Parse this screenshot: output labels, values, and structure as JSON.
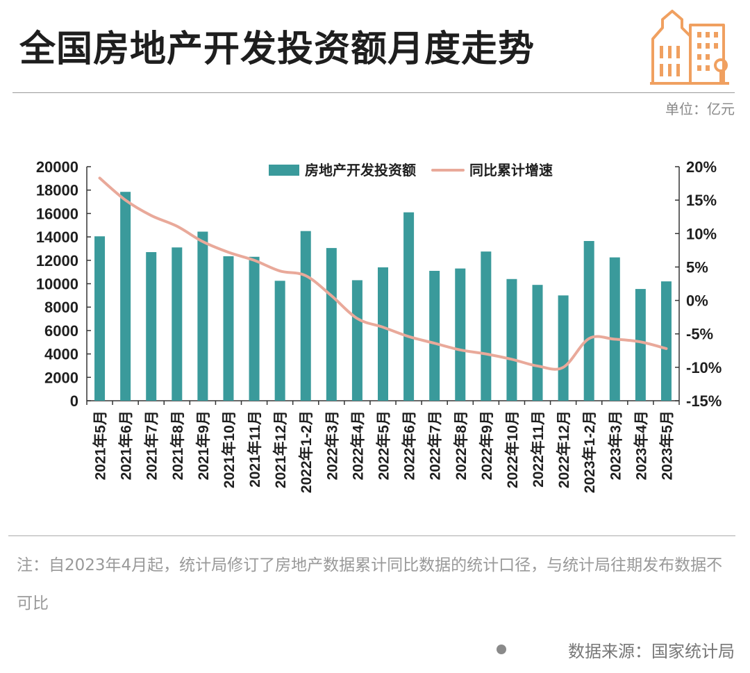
{
  "header": {
    "title": "全国房地产开发投资额月度走势"
  },
  "unit_label": "单位：亿元",
  "footer": {
    "note": "注：自2023年4月起，统计局修订了房地产数据累计同比数据的统计口径，与统计局往期发布数据不可比",
    "source": "数据来源：国家统计局"
  },
  "colors": {
    "bar": "#3a9a9b",
    "line": "#e9a99a",
    "logo": "#f0a060"
  },
  "logo_icon": "building-icon",
  "chart_data": {
    "type": "bar",
    "title": "全国房地产开发投资额月度走势",
    "categories": [
      "2021年5月",
      "2021年6月",
      "2021年7月",
      "2021年8月",
      "2021年9月",
      "2021年10月",
      "2021年11月",
      "2021年12月",
      "2022年1-2月",
      "2022年3月",
      "2022年4月",
      "2022年5月",
      "2022年6月",
      "2022年7月",
      "2022年8月",
      "2022年9月",
      "2022年10月",
      "2022年11月",
      "2022年12月",
      "2023年1-2月",
      "2023年3月",
      "2023年4月",
      "2023年5月"
    ],
    "series": [
      {
        "name": "房地产开发投资额",
        "type": "bar",
        "axis": "left",
        "values": [
          14050,
          17850,
          12700,
          13100,
          14450,
          12350,
          12300,
          10250,
          14500,
          13050,
          10300,
          11400,
          16100,
          11100,
          11300,
          12750,
          10400,
          9900,
          9000,
          13650,
          12250,
          9550,
          10200
        ]
      },
      {
        "name": "同比累计增速",
        "type": "line",
        "axis": "right",
        "values": [
          18.3,
          15.0,
          12.7,
          11.1,
          8.8,
          7.2,
          6.0,
          4.4,
          3.7,
          0.7,
          -2.7,
          -4.0,
          -5.4,
          -6.4,
          -7.4,
          -8.0,
          -8.8,
          -9.8,
          -10.0,
          -5.7,
          -5.8,
          -6.2,
          -7.2
        ]
      }
    ],
    "y_left": {
      "min": 0,
      "max": 20000,
      "ticks": [
        0,
        2000,
        4000,
        6000,
        8000,
        10000,
        12000,
        14000,
        16000,
        18000,
        20000
      ]
    },
    "y_right": {
      "min": -15,
      "max": 20,
      "ticks": [
        "-15%",
        "-10%",
        "-5%",
        "0%",
        "5%",
        "10%",
        "15%",
        "20%"
      ]
    },
    "legend_position": "top-center",
    "grid": false
  }
}
